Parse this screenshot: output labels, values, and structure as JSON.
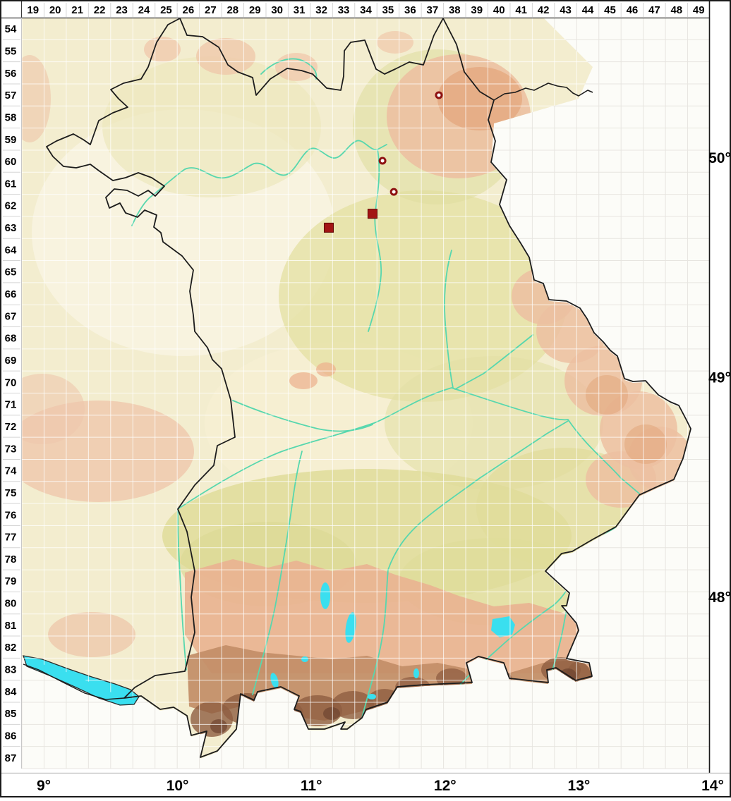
{
  "grid": {
    "column_labels": [
      "19",
      "20",
      "21",
      "22",
      "23",
      "24",
      "25",
      "26",
      "27",
      "28",
      "29",
      "30",
      "31",
      "32",
      "33",
      "34",
      "35",
      "36",
      "37",
      "38",
      "39",
      "40",
      "41",
      "42",
      "43",
      "44",
      "45",
      "46",
      "47",
      "48",
      "49"
    ],
    "row_labels": [
      "54",
      "55",
      "56",
      "57",
      "58",
      "59",
      "60",
      "61",
      "62",
      "63",
      "64",
      "65",
      "66",
      "67",
      "68",
      "69",
      "70",
      "71",
      "72",
      "73",
      "74",
      "75",
      "76",
      "77",
      "78",
      "79",
      "80",
      "81",
      "82",
      "83",
      "84",
      "85",
      "86",
      "87"
    ]
  },
  "axes": {
    "longitude_labels": [
      {
        "text": "9°",
        "value": 9
      },
      {
        "text": "10°",
        "value": 10
      },
      {
        "text": "11°",
        "value": 11
      },
      {
        "text": "12°",
        "value": 12
      },
      {
        "text": "13°",
        "value": 13
      },
      {
        "text": "14°",
        "value": 14
      }
    ],
    "latitude_labels": [
      {
        "text": "50°",
        "value": 50
      },
      {
        "text": "49°",
        "value": 49
      },
      {
        "text": "48°",
        "value": 48
      }
    ]
  },
  "markers": [
    {
      "shape": "open-circle",
      "grid_col": 37,
      "grid_row": 57,
      "fx": 0.79,
      "fy": 0.51
    },
    {
      "shape": "open-circle",
      "grid_col": 35,
      "grid_row": 60,
      "fx": 0.25,
      "fy": 0.48
    },
    {
      "shape": "open-circle",
      "grid_col": 35,
      "grid_row": 61,
      "fx": 0.76,
      "fy": 0.89
    },
    {
      "shape": "filled-square",
      "grid_col": 34,
      "grid_row": 62,
      "fx": 0.8,
      "fy": 0.88
    },
    {
      "shape": "filled-square",
      "grid_col": 32,
      "grid_row": 63,
      "fx": 0.83,
      "fy": 0.51
    }
  ],
  "marker_style": {
    "square_fill": "#A21414",
    "square_stroke": "#5E0000",
    "square_size": 13,
    "circle_stroke": "#8E1212",
    "circle_fill": "#FFFFFF",
    "circle_outer": 11,
    "circle_ring": 3
  },
  "colors": {
    "lake_water": "#3ADFEF",
    "river": "#57D7AE",
    "state_border": "#1C1C1C",
    "terrain_lowland": "#F3EDCF",
    "terrain_upland": "#E2DEA0",
    "terrain_hills": "#ECC0A1",
    "terrain_alpine": "#A87253",
    "outside_map": "#FCFCF8",
    "grid_line_inside": "#FFFFFF",
    "grid_line_outside": "#E7E5E0"
  }
}
